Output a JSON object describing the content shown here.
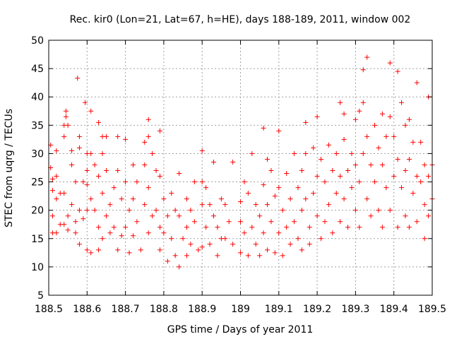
{
  "chart_data": {
    "type": "scatter",
    "title": "Rec. kir0 (Lon=21, Lat=67, h=HE), days 188-189, 2011, window 002",
    "xlabel": "GPS time / Days of year 2011",
    "ylabel": "STEC from uqrg / TECUs",
    "xlim": [
      188.5,
      189.5
    ],
    "ylim": [
      5,
      50
    ],
    "xticks": [
      188.5,
      188.6,
      188.7,
      188.8,
      188.9,
      189,
      189.1,
      189.2,
      189.3,
      189.4,
      189.5
    ],
    "xtick_labels": [
      "188.5",
      "188.6",
      "188.7",
      "188.8",
      "188.9",
      "189",
      "189.1",
      "189.2",
      "189.3",
      "189.4",
      "189.5"
    ],
    "yticks": [
      5,
      10,
      15,
      20,
      25,
      30,
      35,
      40,
      45,
      50
    ],
    "ytick_labels": [
      "5",
      "10",
      "15",
      "20",
      "25",
      "30",
      "35",
      "40",
      "45",
      "50"
    ],
    "grid": true,
    "marker": "+",
    "color": "#ff0000",
    "series": [
      {
        "name": "STEC",
        "points": [
          [
            188.505,
            31.5
          ],
          [
            188.505,
            27.5
          ],
          [
            188.51,
            25.5
          ],
          [
            188.51,
            23.5
          ],
          [
            188.51,
            19
          ],
          [
            188.51,
            16
          ],
          [
            188.52,
            30.5
          ],
          [
            188.52,
            26
          ],
          [
            188.52,
            22
          ],
          [
            188.52,
            16
          ],
          [
            188.53,
            23
          ],
          [
            188.53,
            17.5
          ],
          [
            188.54,
            33
          ],
          [
            188.54,
            35
          ],
          [
            188.54,
            23
          ],
          [
            188.54,
            17.5
          ],
          [
            188.545,
            37.5
          ],
          [
            188.545,
            36.5
          ],
          [
            188.55,
            35
          ],
          [
            188.55,
            16.5
          ],
          [
            188.55,
            19
          ],
          [
            188.56,
            30.5
          ],
          [
            188.56,
            28
          ],
          [
            188.56,
            21
          ],
          [
            188.57,
            18
          ],
          [
            188.57,
            16
          ],
          [
            188.57,
            25
          ],
          [
            188.575,
            43.3
          ],
          [
            188.58,
            33
          ],
          [
            188.58,
            31
          ],
          [
            188.58,
            20
          ],
          [
            188.58,
            14
          ],
          [
            188.59,
            25
          ],
          [
            188.59,
            18.5
          ],
          [
            188.595,
            39
          ],
          [
            188.6,
            30
          ],
          [
            188.6,
            27
          ],
          [
            188.6,
            24.5
          ],
          [
            188.6,
            20
          ],
          [
            188.6,
            13
          ],
          [
            188.61,
            37.5
          ],
          [
            188.61,
            30
          ],
          [
            188.61,
            22
          ],
          [
            188.61,
            12.5
          ],
          [
            188.62,
            28
          ],
          [
            188.62,
            20
          ],
          [
            188.63,
            35.5
          ],
          [
            188.63,
            26
          ],
          [
            188.63,
            17
          ],
          [
            188.63,
            13
          ],
          [
            188.64,
            33
          ],
          [
            188.64,
            30
          ],
          [
            188.64,
            23
          ],
          [
            188.64,
            15
          ],
          [
            188.65,
            33
          ],
          [
            188.65,
            27
          ],
          [
            188.65,
            19
          ],
          [
            188.66,
            21
          ],
          [
            188.66,
            16
          ],
          [
            188.67,
            24
          ],
          [
            188.67,
            17
          ],
          [
            188.68,
            33
          ],
          [
            188.68,
            27
          ],
          [
            188.68,
            13
          ],
          [
            188.69,
            22
          ],
          [
            188.69,
            15.5
          ],
          [
            188.7,
            32.5
          ],
          [
            188.7,
            25
          ],
          [
            188.7,
            17
          ],
          [
            188.71,
            20
          ],
          [
            188.71,
            12.5
          ],
          [
            188.72,
            28
          ],
          [
            188.72,
            22
          ],
          [
            188.72,
            15.5
          ],
          [
            188.73,
            25
          ],
          [
            188.73,
            18
          ],
          [
            188.74,
            13
          ],
          [
            188.75,
            32
          ],
          [
            188.75,
            28
          ],
          [
            188.75,
            21
          ],
          [
            188.76,
            36
          ],
          [
            188.76,
            33
          ],
          [
            188.76,
            24
          ],
          [
            188.76,
            16
          ],
          [
            188.77,
            30
          ],
          [
            188.77,
            19
          ],
          [
            188.78,
            27
          ],
          [
            188.78,
            20
          ],
          [
            188.79,
            34
          ],
          [
            188.79,
            26
          ],
          [
            188.79,
            17
          ],
          [
            188.79,
            13
          ],
          [
            188.8,
            22
          ],
          [
            188.8,
            16
          ],
          [
            188.81,
            19
          ],
          [
            188.81,
            11
          ],
          [
            188.82,
            23
          ],
          [
            188.82,
            15
          ],
          [
            188.83,
            20
          ],
          [
            188.83,
            12
          ],
          [
            188.84,
            26.5
          ],
          [
            188.84,
            19
          ],
          [
            188.84,
            10
          ],
          [
            188.85,
            15
          ],
          [
            188.86,
            22
          ],
          [
            188.86,
            17
          ],
          [
            188.86,
            12
          ],
          [
            188.87,
            20
          ],
          [
            188.87,
            14
          ],
          [
            188.88,
            25
          ],
          [
            188.88,
            18
          ],
          [
            188.89,
            13
          ],
          [
            188.9,
            30.5
          ],
          [
            188.9,
            25
          ],
          [
            188.9,
            21
          ],
          [
            188.9,
            13.5
          ],
          [
            188.91,
            24
          ],
          [
            188.91,
            17
          ],
          [
            188.92,
            21
          ],
          [
            188.92,
            14
          ],
          [
            188.93,
            28.5
          ],
          [
            188.93,
            19
          ],
          [
            188.94,
            17
          ],
          [
            188.94,
            12
          ],
          [
            188.95,
            22
          ],
          [
            188.95,
            15
          ],
          [
            188.96,
            21
          ],
          [
            188.96,
            15
          ],
          [
            188.97,
            18
          ],
          [
            188.98,
            28.5
          ],
          [
            188.98,
            14
          ],
          [
            189.0,
            21.5
          ],
          [
            189.0,
            18
          ],
          [
            189.0,
            12.5
          ],
          [
            189.01,
            25
          ],
          [
            189.01,
            16
          ],
          [
            189.02,
            23
          ],
          [
            189.02,
            12
          ],
          [
            189.03,
            30
          ],
          [
            189.03,
            17
          ],
          [
            189.04,
            21
          ],
          [
            189.04,
            14
          ],
          [
            189.05,
            19
          ],
          [
            189.05,
            12
          ],
          [
            189.06,
            34.5
          ],
          [
            189.06,
            24.5
          ],
          [
            189.06,
            16
          ],
          [
            189.07,
            29
          ],
          [
            189.07,
            21
          ],
          [
            189.07,
            13
          ],
          [
            189.08,
            27
          ],
          [
            189.08,
            18
          ],
          [
            189.09,
            22.5
          ],
          [
            189.09,
            12.5
          ],
          [
            189.1,
            34
          ],
          [
            189.1,
            24
          ],
          [
            189.1,
            16
          ],
          [
            189.11,
            20
          ],
          [
            189.11,
            12
          ],
          [
            189.12,
            26.5
          ],
          [
            189.12,
            17
          ],
          [
            189.13,
            22
          ],
          [
            189.13,
            14
          ],
          [
            189.14,
            30
          ],
          [
            189.14,
            18
          ],
          [
            189.15,
            24
          ],
          [
            189.15,
            15
          ],
          [
            189.16,
            27
          ],
          [
            189.16,
            20
          ],
          [
            189.16,
            13
          ],
          [
            189.17,
            35.5
          ],
          [
            189.17,
            30
          ],
          [
            189.17,
            22
          ],
          [
            189.18,
            17
          ],
          [
            189.18,
            14
          ],
          [
            189.19,
            31
          ],
          [
            189.19,
            23
          ],
          [
            189.2,
            36.5
          ],
          [
            189.2,
            26
          ],
          [
            189.2,
            19
          ],
          [
            189.21,
            29
          ],
          [
            189.21,
            15
          ],
          [
            189.22,
            25
          ],
          [
            189.22,
            18
          ],
          [
            189.23,
            31.5
          ],
          [
            189.23,
            21
          ],
          [
            189.24,
            27
          ],
          [
            189.24,
            16
          ],
          [
            189.25,
            30
          ],
          [
            189.25,
            23
          ],
          [
            189.26,
            39
          ],
          [
            189.26,
            26
          ],
          [
            189.26,
            18
          ],
          [
            189.27,
            37
          ],
          [
            189.27,
            32.5
          ],
          [
            189.27,
            22
          ],
          [
            189.28,
            27
          ],
          [
            189.28,
            17
          ],
          [
            189.29,
            30
          ],
          [
            189.29,
            24
          ],
          [
            189.3,
            36
          ],
          [
            189.3,
            28
          ],
          [
            189.3,
            20
          ],
          [
            189.31,
            37.5
          ],
          [
            189.31,
            25
          ],
          [
            189.31,
            17
          ],
          [
            189.32,
            44.8
          ],
          [
            189.32,
            39
          ],
          [
            189.32,
            30
          ],
          [
            189.33,
            47
          ],
          [
            189.33,
            33
          ],
          [
            189.33,
            22
          ],
          [
            189.34,
            28
          ],
          [
            189.34,
            19
          ],
          [
            189.35,
            35
          ],
          [
            189.35,
            25
          ],
          [
            189.36,
            31
          ],
          [
            189.36,
            20
          ],
          [
            189.37,
            37
          ],
          [
            189.37,
            28
          ],
          [
            189.37,
            17
          ],
          [
            189.38,
            33
          ],
          [
            189.38,
            24
          ],
          [
            189.39,
            46
          ],
          [
            189.39,
            36.5
          ],
          [
            189.39,
            20
          ],
          [
            189.4,
            33
          ],
          [
            189.4,
            26
          ],
          [
            189.41,
            44.5
          ],
          [
            189.41,
            29
          ],
          [
            189.41,
            17
          ],
          [
            189.42,
            39
          ],
          [
            189.42,
            24
          ],
          [
            189.43,
            35
          ],
          [
            189.43,
            27
          ],
          [
            189.43,
            19
          ],
          [
            189.44,
            36
          ],
          [
            189.44,
            29
          ],
          [
            189.44,
            17
          ],
          [
            189.45,
            32
          ],
          [
            189.45,
            23
          ],
          [
            189.46,
            42.5
          ],
          [
            189.46,
            26
          ],
          [
            189.46,
            18
          ],
          [
            189.47,
            32
          ],
          [
            189.47,
            25
          ],
          [
            189.48,
            28
          ],
          [
            189.48,
            21
          ],
          [
            189.48,
            15
          ],
          [
            189.49,
            40
          ],
          [
            189.49,
            26
          ],
          [
            189.49,
            19
          ],
          [
            189.5,
            28
          ],
          [
            189.5,
            22
          ]
        ]
      }
    ]
  }
}
